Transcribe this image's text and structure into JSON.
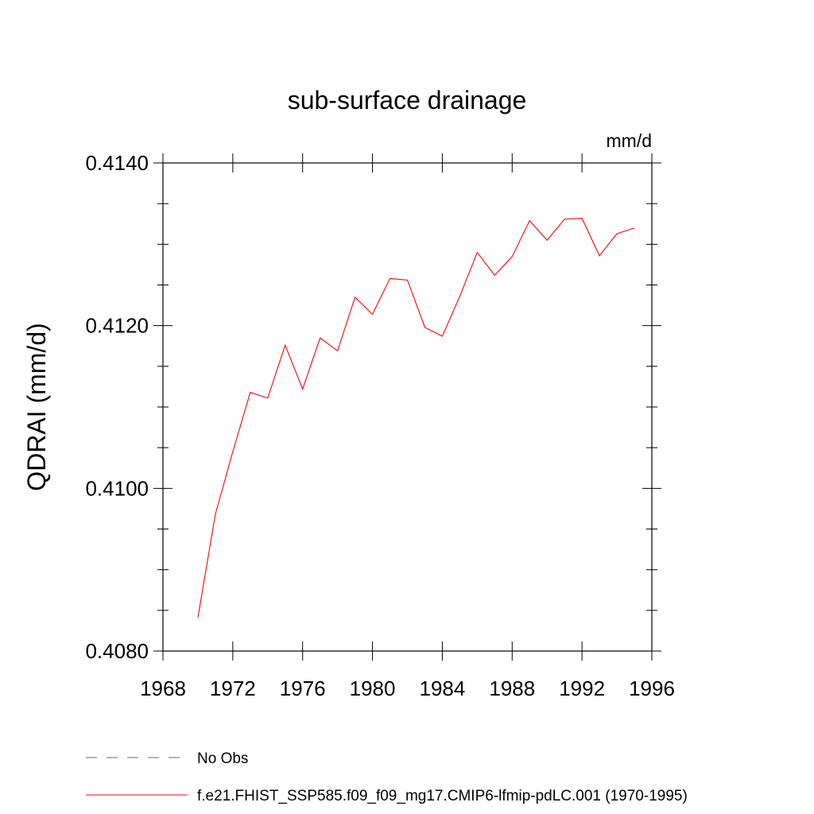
{
  "chart_data": {
    "type": "line",
    "title": "sub-surface drainage",
    "units_label": "mm/d",
    "ylabel": "QDRAI  (mm/d)",
    "xlabel": "",
    "xlim": [
      1968,
      1996
    ],
    "ylim": [
      0.408,
      0.414
    ],
    "x_ticks": [
      1968,
      1972,
      1976,
      1980,
      1984,
      1988,
      1992,
      1996
    ],
    "x_tick_labels": [
      "1968",
      "1972",
      "1976",
      "1980",
      "1984",
      "1988",
      "1992",
      "1996"
    ],
    "y_ticks": [
      0.408,
      0.41,
      0.412,
      0.414
    ],
    "y_tick_labels": [
      "0.4080",
      "0.4100",
      "0.4120",
      "0.4140"
    ],
    "y_minor_step": 0.0005,
    "x_minor_step": 1,
    "grid": false,
    "series": [
      {
        "name": "f.e21.FHIST_SSP585.f09_f09_mg17.CMIP6-lfmip-pdLC.001 (1970-1995)",
        "color": "#ff0000",
        "x": [
          1970,
          1971,
          1972,
          1973,
          1974,
          1975,
          1976,
          1977,
          1978,
          1979,
          1980,
          1981,
          1982,
          1983,
          1984,
          1985,
          1986,
          1987,
          1988,
          1989,
          1990,
          1991,
          1992,
          1993,
          1994,
          1995
        ],
        "values": [
          0.40841,
          0.40968,
          0.41045,
          0.41118,
          0.41111,
          0.41176,
          0.41122,
          0.41185,
          0.41169,
          0.41235,
          0.41214,
          0.41258,
          0.41256,
          0.41198,
          0.41187,
          0.41236,
          0.4129,
          0.41262,
          0.41285,
          0.41329,
          0.41305,
          0.41331,
          0.41332,
          0.41286,
          0.41313,
          0.4132
        ]
      }
    ],
    "legend": {
      "placement": "bottom-left",
      "entries": [
        {
          "label": "No Obs",
          "color": "#6a5acd",
          "style": "dashed"
        },
        {
          "label": "f.e21.FHIST_SSP585.f09_f09_mg17.CMIP6-lfmip-pdLC.001 (1970-1995)",
          "color": "#ff0000",
          "style": "solid"
        }
      ]
    }
  }
}
